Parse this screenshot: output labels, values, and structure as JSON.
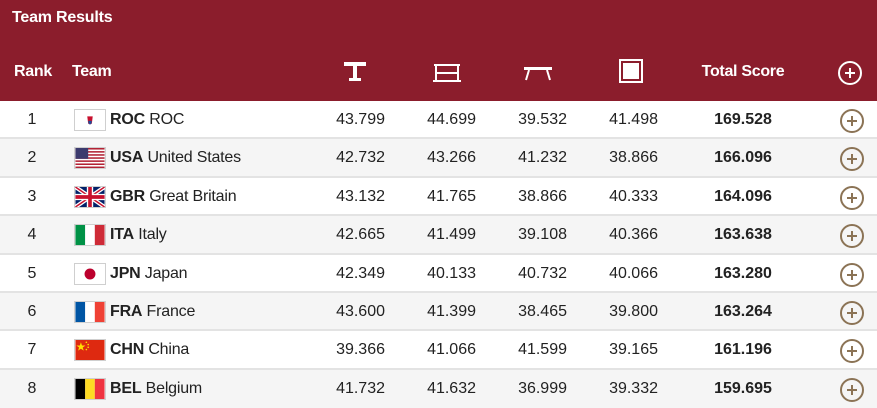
{
  "header": {
    "title": "Team Results",
    "rank_label": "Rank",
    "team_label": "Team",
    "total_label": "Total Score",
    "apparatus_icons": [
      "vault-icon",
      "uneven-bars-icon",
      "balance-beam-icon",
      "floor-exercise-icon"
    ],
    "background_color": "#8b1d2c"
  },
  "rows": [
    {
      "rank": "1",
      "code": "ROC",
      "name": "ROC",
      "flag": "roc",
      "scores": [
        "43.799",
        "44.699",
        "39.532",
        "41.498"
      ],
      "total": "169.528"
    },
    {
      "rank": "2",
      "code": "USA",
      "name": "United States",
      "flag": "usa",
      "scores": [
        "42.732",
        "43.266",
        "41.232",
        "38.866"
      ],
      "total": "166.096"
    },
    {
      "rank": "3",
      "code": "GBR",
      "name": "Great Britain",
      "flag": "gbr",
      "scores": [
        "43.132",
        "41.765",
        "38.866",
        "40.333"
      ],
      "total": "164.096"
    },
    {
      "rank": "4",
      "code": "ITA",
      "name": "Italy",
      "flag": "ita",
      "scores": [
        "42.665",
        "41.499",
        "39.108",
        "40.366"
      ],
      "total": "163.638"
    },
    {
      "rank": "5",
      "code": "JPN",
      "name": "Japan",
      "flag": "jpn",
      "scores": [
        "42.349",
        "40.133",
        "40.732",
        "40.066"
      ],
      "total": "163.280"
    },
    {
      "rank": "6",
      "code": "FRA",
      "name": "France",
      "flag": "fra",
      "scores": [
        "43.600",
        "41.399",
        "38.465",
        "39.800"
      ],
      "total": "163.264"
    },
    {
      "rank": "7",
      "code": "CHN",
      "name": "China",
      "flag": "chn",
      "scores": [
        "39.366",
        "41.066",
        "41.599",
        "39.165"
      ],
      "total": "161.196"
    },
    {
      "rank": "8",
      "code": "BEL",
      "name": "Belgium",
      "flag": "bel",
      "scores": [
        "41.732",
        "41.632",
        "36.999",
        "39.332"
      ],
      "total": "159.695"
    }
  ]
}
